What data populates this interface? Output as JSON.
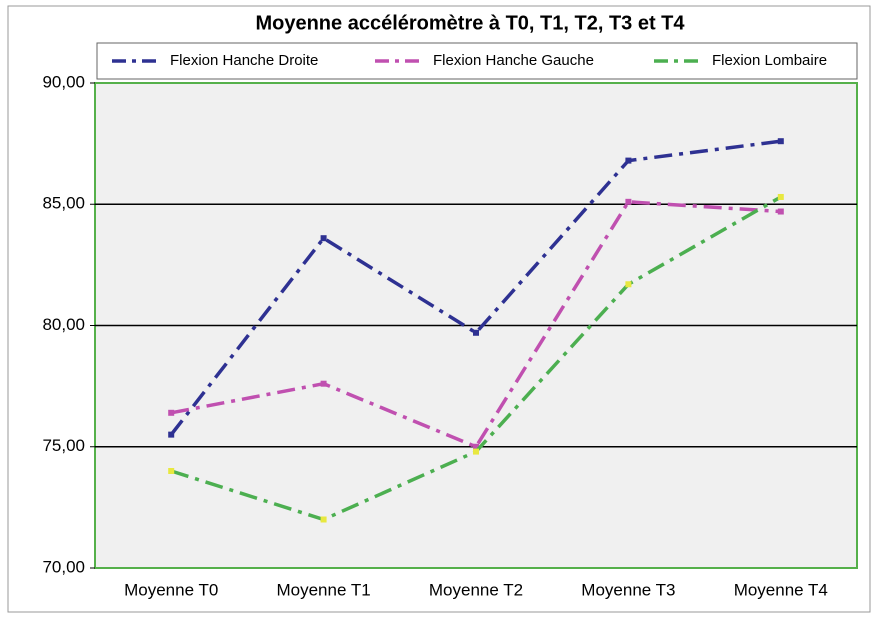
{
  "chart_data": {
    "type": "line",
    "title": "Moyenne accéléromètre à T0, T1, T2, T3 et T4",
    "categories": [
      "Moyenne T0",
      "Moyenne T1",
      "Moyenne T2",
      "Moyenne T3",
      "Moyenne T4"
    ],
    "series": [
      {
        "name": "Flexion Hanche Droite",
        "color": "#2e3192",
        "values": [
          75.5,
          83.6,
          79.7,
          86.8,
          87.6
        ]
      },
      {
        "name": "Flexion Hanche Gauche",
        "color": "#c050b0",
        "values": [
          76.4,
          77.6,
          75.0,
          85.1,
          84.7
        ]
      },
      {
        "name": "Flexion Lombaire",
        "color": "#4caf50",
        "values": [
          74.0,
          72.0,
          74.8,
          81.7,
          85.3
        ]
      }
    ],
    "ylim": [
      70,
      90
    ],
    "yticks": [
      {
        "value": 70,
        "label": "70,00"
      },
      {
        "value": 75,
        "label": "75,00"
      },
      {
        "value": 80,
        "label": "80,00"
      },
      {
        "value": 85,
        "label": "85,00"
      },
      {
        "value": 90,
        "label": "90,00"
      }
    ],
    "grid": true
  }
}
